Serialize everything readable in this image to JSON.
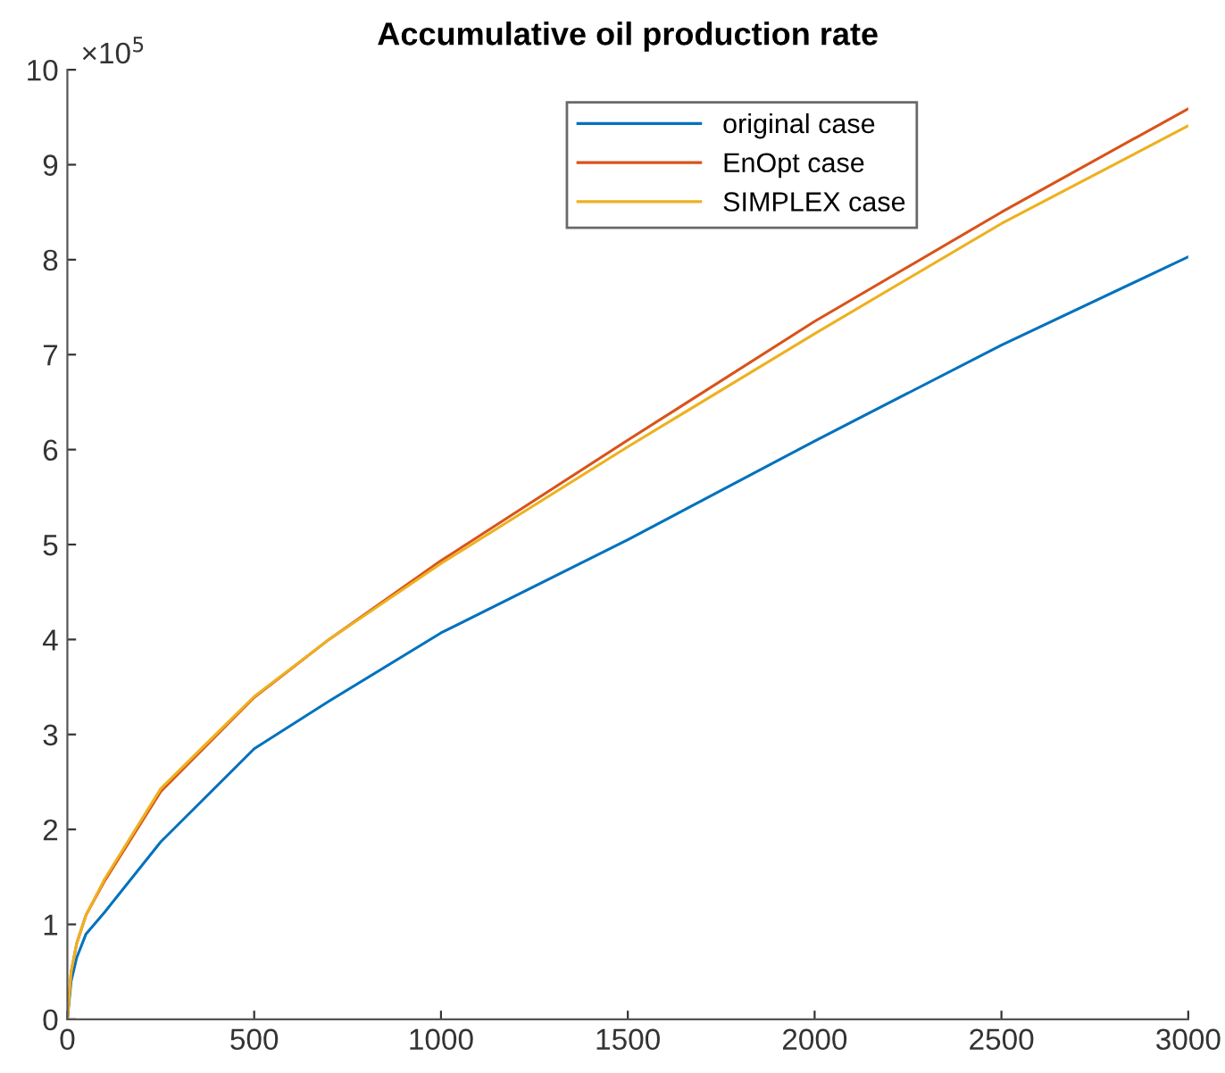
{
  "chart_data": {
    "type": "line",
    "title": "Accumulative oil production rate",
    "annotations": [
      "×10$^{5}$"
    ],
    "xlim": [
      0,
      3000
    ],
    "xticks": [
      0,
      500,
      1000,
      1500,
      2000,
      2500,
      3000
    ],
    "ylim": [
      0,
      10
    ],
    "yticks": [
      0,
      1,
      2,
      3,
      4,
      5,
      6,
      7,
      8,
      9,
      10
    ],
    "grid": false,
    "legend": "top right",
    "line_style": "solid",
    "marker": "none",
    "series": [
      {
        "name": "original case",
        "color": "#0072bd",
        "x": [
          0,
          10,
          25,
          50,
          100,
          250,
          500,
          700,
          1000,
          1500,
          2000,
          2500,
          3000
        ],
        "values": [
          0,
          0.4,
          0.65,
          0.9,
          1.13,
          1.87,
          2.85,
          3.35,
          4.07,
          5.05,
          6.09,
          7.1,
          8.03
        ]
      },
      {
        "name": "EnOpt case",
        "color": "#d95319",
        "x": [
          0,
          10,
          25,
          50,
          100,
          250,
          500,
          700,
          1000,
          1500,
          2000,
          2500,
          3000
        ],
        "values": [
          0,
          0.5,
          0.8,
          1.1,
          1.46,
          2.4,
          3.39,
          4.0,
          4.83,
          6.1,
          7.35,
          8.5,
          9.59
        ]
      },
      {
        "name": "SIMPLEX case",
        "color": "#edb120",
        "x": [
          0,
          10,
          25,
          50,
          100,
          250,
          500,
          700,
          1000,
          1500,
          2000,
          2500,
          3000
        ],
        "values": [
          0,
          0.5,
          0.8,
          1.1,
          1.48,
          2.43,
          3.4,
          4.0,
          4.8,
          6.03,
          7.22,
          8.38,
          9.41
        ]
      }
    ]
  }
}
